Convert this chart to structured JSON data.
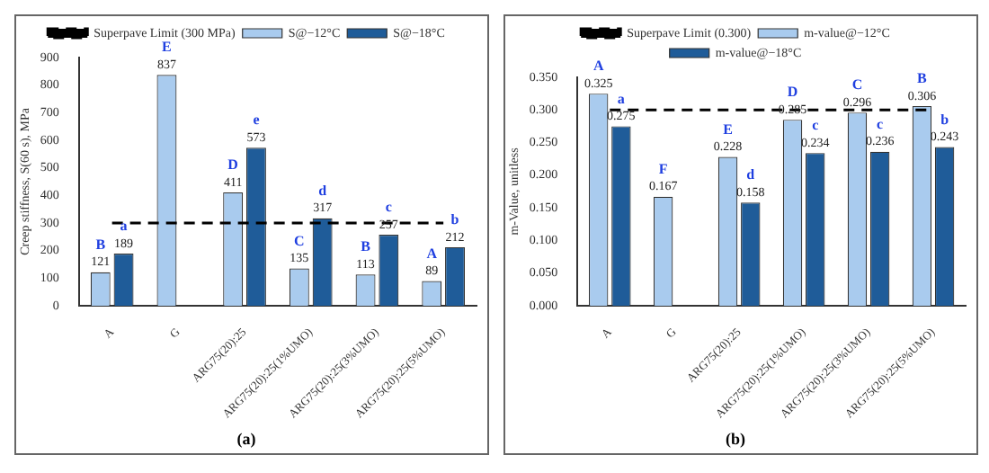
{
  "chart_data": [
    {
      "type": "bar",
      "title": "(a)",
      "ylabel": "Creep stiffness, S(60 s), MPa",
      "categories": [
        "A",
        "G",
        "ARG75(20):25",
        "ARG75(20):25(1%UMO)",
        "ARG75(20):25(3%UMO)",
        "ARG75(20):25(5%UMO)"
      ],
      "series": [
        {
          "name": "S@−12°C",
          "color": "#a9cbee",
          "values": [
            121,
            837,
            411,
            135,
            113,
            89
          ]
        },
        {
          "name": "S@−18°C",
          "color": "#1f5c99",
          "values": [
            189,
            null,
            573,
            317,
            257,
            212
          ]
        }
      ],
      "ylim": [
        0,
        900
      ],
      "yticks": [
        0,
        100,
        200,
        300,
        400,
        500,
        600,
        700,
        800,
        900
      ],
      "ref_lines": [
        {
          "axis": "y",
          "value": 300,
          "label": "Superpave Limit (300 MPa)",
          "color": "#000000",
          "line_style": "dashed"
        }
      ],
      "annotations": [
        {
          "text": "B",
          "x": "A",
          "y": 121
        },
        {
          "text": "a",
          "x": "A",
          "y": 189
        },
        {
          "text": "E",
          "x": "G",
          "y": 837
        },
        {
          "text": "D",
          "x": "ARG75(20):25",
          "y": 411
        },
        {
          "text": "e",
          "x": "ARG75(20):25",
          "y": 573
        },
        {
          "text": "C",
          "x": "ARG75(20):25(1%UMO)",
          "y": 135
        },
        {
          "text": "d",
          "x": "ARG75(20):25(1%UMO)",
          "y": 317
        },
        {
          "text": "B",
          "x": "ARG75(20):25(3%UMO)",
          "y": 113
        },
        {
          "text": "c",
          "x": "ARG75(20):25(3%UMO)",
          "y": 257
        },
        {
          "text": "A",
          "x": "ARG75(20):25(5%UMO)",
          "y": 89
        },
        {
          "text": "b",
          "x": "ARG75(20):25(5%UMO)",
          "y": 212
        }
      ],
      "data_labels": true,
      "legend": "top",
      "grid": false
    },
    {
      "type": "bar",
      "title": "(b)",
      "ylabel": "m-Value, unitless",
      "categories": [
        "A",
        "G",
        "ARG75(20):25",
        "ARG75(20):25(1%UMO)",
        "ARG75(20):25(3%UMO)",
        "ARG75(20):25(5%UMO)"
      ],
      "series": [
        {
          "name": "m-value@−12°C",
          "color": "#a9cbee",
          "values": [
            0.325,
            0.167,
            0.228,
            0.285,
            0.296,
            0.306
          ]
        },
        {
          "name": "m-value@−18°C",
          "color": "#1f5c99",
          "values": [
            0.275,
            null,
            0.158,
            0.234,
            0.236,
            0.243
          ]
        }
      ],
      "ylim": [
        0,
        0.35
      ],
      "yticks": [
        {
          "value": 0,
          "label": "0.000"
        },
        {
          "value": 0.05,
          "label": "0.050"
        },
        {
          "value": 0.1,
          "label": "0.100"
        },
        {
          "value": 0.15,
          "label": "0.150"
        },
        {
          "value": 0.2,
          "label": "0.200"
        },
        {
          "value": 0.25,
          "label": "0.250"
        },
        {
          "value": 0.3,
          "label": "0.300"
        },
        {
          "value": 0.35,
          "label": "0.350"
        }
      ],
      "ref_lines": [
        {
          "axis": "y",
          "value": 0.3,
          "label": "Superpave Limit (0.300)",
          "color": "#000000",
          "line_style": "dashed"
        }
      ],
      "annotations": [
        {
          "text": "A",
          "x": "A",
          "y": 0.325
        },
        {
          "text": "a",
          "x": "A",
          "y": 0.275
        },
        {
          "text": "F",
          "x": "G",
          "y": 0.167
        },
        {
          "text": "E",
          "x": "ARG75(20):25",
          "y": 0.228
        },
        {
          "text": "d",
          "x": "ARG75(20):25",
          "y": 0.158
        },
        {
          "text": "D",
          "x": "ARG75(20):25(1%UMO)",
          "y": 0.285
        },
        {
          "text": "c",
          "x": "ARG75(20):25(1%UMO)",
          "y": 0.234
        },
        {
          "text": "C",
          "x": "ARG75(20):25(3%UMO)",
          "y": 0.296
        },
        {
          "text": "c",
          "x": "ARG75(20):25(3%UMO)",
          "y": 0.236
        },
        {
          "text": "B",
          "x": "ARG75(20):25(5%UMO)",
          "y": 0.306
        },
        {
          "text": "b",
          "x": "ARG75(20):25(5%UMO)",
          "y": 0.243
        }
      ],
      "data_labels": true,
      "legend": "top",
      "grid": false
    }
  ]
}
